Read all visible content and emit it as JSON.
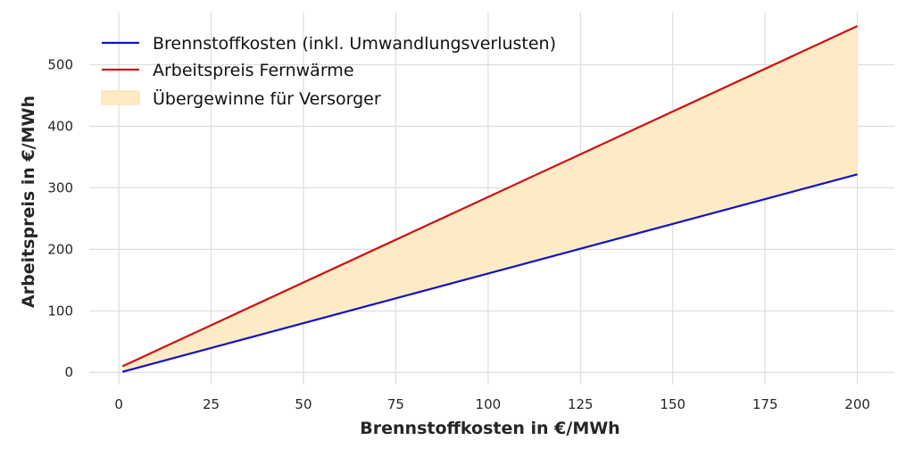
{
  "chart_data": {
    "type": "line",
    "title": "",
    "xlabel": "Brennstoffkosten in €/MWh",
    "ylabel": "Arbeitspreis in €/MWh",
    "xlim": [
      -8,
      210
    ],
    "ylim": [
      -20,
      585
    ],
    "x_ticks": [
      0,
      25,
      50,
      75,
      100,
      125,
      150,
      175,
      200
    ],
    "y_ticks": [
      0,
      100,
      200,
      300,
      400,
      500
    ],
    "grid": true,
    "legend_position": "top-left",
    "series": [
      {
        "name": "Brennstoffkosten (inkl. Umwandlungsverlusten)",
        "color": "#1010c8",
        "x": [
          1,
          200
        ],
        "y": [
          1,
          322
        ]
      },
      {
        "name": "Arbeitspreis Fernwärme",
        "color": "#d01010",
        "x": [
          1,
          200
        ],
        "y": [
          10,
          563
        ]
      }
    ],
    "fill": {
      "name": "Übergewinne für Versorger",
      "color": "#fdebc6",
      "between": [
        "Brennstoffkosten (inkl. Umwandlungsverlusten)",
        "Arbeitspreis Fernwärme"
      ]
    }
  }
}
